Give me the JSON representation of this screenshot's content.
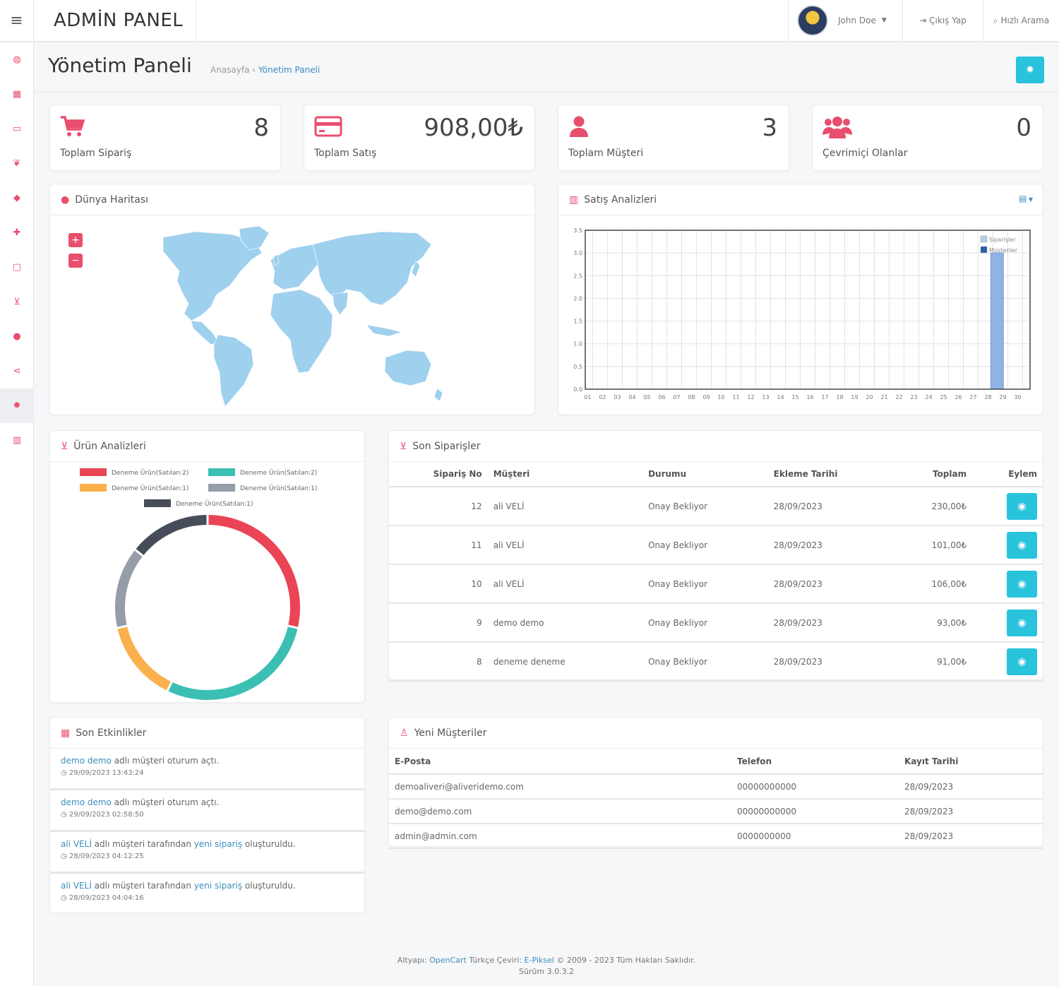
{
  "header": {
    "brand": "ADMİN PANEL",
    "user_name": "John Doe",
    "logout_label": "Çıkış Yap",
    "search_label": "Hızlı Arama"
  },
  "page": {
    "title": "Yönetim Paneli",
    "breadcrumb_home": "Anasayfa",
    "breadcrumb_sep": "›",
    "breadcrumb_current": "Yönetim Paneli"
  },
  "stats": [
    {
      "label": "Toplam Sipariş",
      "value": "8",
      "icon": "cart-icon"
    },
    {
      "label": "Toplam Satış",
      "value": "908,00₺",
      "icon": "credit-card-icon"
    },
    {
      "label": "Toplam Müşteri",
      "value": "3",
      "icon": "user-icon"
    },
    {
      "label": "Çevrimiçi Olanlar",
      "value": "0",
      "icon": "users-icon"
    }
  ],
  "map_panel": {
    "title": "Dünya Haritası",
    "zoom_in": "+",
    "zoom_out": "−"
  },
  "sales_panel": {
    "title": "Satış Analizleri"
  },
  "chart_data": [
    {
      "type": "bar",
      "title": "Satış Analizleri",
      "x": [
        "01",
        "02",
        "03",
        "04",
        "05",
        "06",
        "07",
        "08",
        "09",
        "10",
        "11",
        "12",
        "13",
        "14",
        "15",
        "16",
        "17",
        "18",
        "19",
        "20",
        "21",
        "22",
        "23",
        "24",
        "25",
        "26",
        "27",
        "28",
        "29",
        "30"
      ],
      "series": [
        {
          "name": "Siparişler",
          "color": "#b7cde6",
          "values": [
            0,
            0,
            0,
            0,
            0,
            0,
            0,
            0,
            0,
            0,
            0,
            0,
            0,
            0,
            0,
            0,
            0,
            0,
            0,
            0,
            0,
            0,
            0,
            0,
            0,
            0,
            0,
            3,
            0,
            0
          ]
        },
        {
          "name": "Müşteriler",
          "color": "#2f5ea8",
          "values": [
            0,
            0,
            0,
            0,
            0,
            0,
            0,
            0,
            0,
            0,
            0,
            0,
            0,
            0,
            0,
            0,
            0,
            0,
            0,
            0,
            0,
            0,
            0,
            0,
            0,
            0,
            0,
            0,
            0,
            0
          ]
        }
      ],
      "yticks": [
        "0.0",
        "0.5",
        "1.0",
        "1.5",
        "2.0",
        "2.5",
        "3.0",
        "3.5"
      ],
      "ylim": [
        0,
        3.5
      ],
      "grid": true,
      "legend": "top-right"
    },
    {
      "type": "pie",
      "title": "Ürün Analizleri",
      "series": [
        {
          "name": "Deneme Ürün(Satılan:2)",
          "value": 2,
          "color": "#ea4455"
        },
        {
          "name": "Deneme Ürün(Satılan:2)",
          "value": 2,
          "color": "#3bbfb3"
        },
        {
          "name": "Deneme Ürün(Satılan:1)",
          "value": 1,
          "color": "#fbb04e"
        },
        {
          "name": "Deneme Ürün(Satılan:1)",
          "value": 1,
          "color": "#959daa"
        },
        {
          "name": "Deneme Ürün(Satılan:1)",
          "value": 1,
          "color": "#474c5a"
        }
      ],
      "legend": "top"
    }
  ],
  "product_panel": {
    "title": "Ürün Analizleri"
  },
  "orders_panel": {
    "title": "Son Siparişler",
    "columns": [
      "Sipariş No",
      "Müşteri",
      "Durumu",
      "Ekleme Tarihi",
      "Toplam",
      "Eylem"
    ],
    "rows": [
      {
        "no": "12",
        "customer": "ali VELİ",
        "status": "Onay Bekliyor",
        "date": "28/09/2023",
        "total": "230,00₺"
      },
      {
        "no": "11",
        "customer": "ali VELİ",
        "status": "Onay Bekliyor",
        "date": "28/09/2023",
        "total": "101,00₺"
      },
      {
        "no": "10",
        "customer": "ali VELİ",
        "status": "Onay Bekliyor",
        "date": "28/09/2023",
        "total": "106,00₺"
      },
      {
        "no": "9",
        "customer": "demo demo",
        "status": "Onay Bekliyor",
        "date": "28/09/2023",
        "total": "93,00₺"
      },
      {
        "no": "8",
        "customer": "deneme deneme",
        "status": "Onay Bekliyor",
        "date": "28/09/2023",
        "total": "91,00₺"
      }
    ]
  },
  "activities_panel": {
    "title": "Son Etkinlikler",
    "items": [
      {
        "name": "demo demo",
        "text": " adlı müşteri oturum açtı.",
        "link": "",
        "text2": "",
        "time": "29/09/2023 13:43:24"
      },
      {
        "name": "demo demo",
        "text": " adlı müşteri oturum açtı.",
        "link": "",
        "text2": "",
        "time": "29/09/2023 02:58:50"
      },
      {
        "name": "ali VELİ",
        "text": " adlı müşteri tarafından ",
        "link": "yeni sipariş",
        "text2": " oluşturuldu.",
        "time": "28/09/2023 04:12:25"
      },
      {
        "name": "ali VELİ",
        "text": " adlı müşteri tarafından ",
        "link": "yeni sipariş",
        "text2": " oluşturuldu.",
        "time": "28/09/2023 04:04:16"
      }
    ]
  },
  "customers_panel": {
    "title": "Yeni Müşteriler",
    "columns": [
      "E-Posta",
      "Telefon",
      "Kayıt Tarihi"
    ],
    "rows": [
      {
        "email": "demoaliveri@aliveridemo.com",
        "phone": "00000000000",
        "date": "28/09/2023"
      },
      {
        "email": "demo@demo.com",
        "phone": "00000000000",
        "date": "28/09/2023"
      },
      {
        "email": "admin@admin.com",
        "phone": "0000000000",
        "date": "28/09/2023"
      }
    ]
  },
  "footer": {
    "prefix": "Altyapı: ",
    "opencart": "OpenCart",
    "mid": " Türkçe Çeviri: ",
    "epiksel": "E-Piksel",
    "suffix": " © 2009 - 2023 Tüm Hakları Saklıdır.",
    "version": "Sürüm 3.0.3.2"
  },
  "sidebar": [
    {
      "icon": "dashboard-icon",
      "glyph": "◍"
    },
    {
      "icon": "grid-icon",
      "glyph": "▦"
    },
    {
      "icon": "catalog-icon",
      "glyph": "▭"
    },
    {
      "icon": "leaf-icon",
      "glyph": "❦"
    },
    {
      "icon": "tags-icon",
      "glyph": "◆"
    },
    {
      "icon": "puzzle-icon",
      "glyph": "✚"
    },
    {
      "icon": "monitor-icon",
      "glyph": "▢"
    },
    {
      "icon": "cart-icon",
      "glyph": "⊻"
    },
    {
      "icon": "user-icon",
      "glyph": "●"
    },
    {
      "icon": "share-icon",
      "glyph": "⋖"
    },
    {
      "icon": "settings-icon",
      "glyph": "✹",
      "active": true
    },
    {
      "icon": "reports-icon",
      "glyph": "▥"
    }
  ]
}
